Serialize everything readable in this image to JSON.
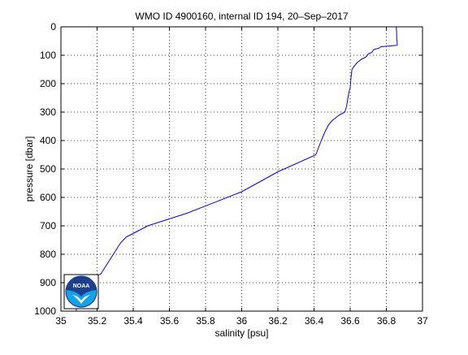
{
  "chart_data": {
    "type": "line",
    "title": "WMO ID 4900160, internal ID 194, 20–Sep–2017",
    "xlabel": "salinity [psu]",
    "ylabel": "pressure [dbar]",
    "xlim": [
      35,
      37
    ],
    "ylim": [
      0,
      1000
    ],
    "y_reversed": true,
    "grid": true,
    "xticks": [
      35,
      35.2,
      35.4,
      35.6,
      35.8,
      36,
      36.2,
      36.4,
      36.6,
      36.8,
      37
    ],
    "xtick_labels": [
      "35",
      "35.2",
      "35.4",
      "35.6",
      "35.8",
      "36",
      "36.2",
      "36.4",
      "36.6",
      "36.8",
      "37"
    ],
    "yticks": [
      0,
      100,
      200,
      300,
      400,
      500,
      600,
      700,
      800,
      900,
      1000
    ],
    "ytick_labels": [
      "0",
      "100",
      "200",
      "300",
      "400",
      "500",
      "600",
      "700",
      "800",
      "900",
      "1000"
    ],
    "series": [
      {
        "color": "#0000ff",
        "x": [
          35.085,
          35.085,
          35.083,
          35.083,
          35.084,
          35.084,
          35.085,
          35.087,
          35.088,
          35.097,
          35.108,
          35.112,
          35.122,
          35.14,
          35.18,
          35.22,
          35.29,
          35.33,
          35.36,
          35.42,
          35.48,
          35.7,
          36.0,
          36.2,
          36.41,
          36.44,
          36.46,
          36.48,
          36.5,
          36.54,
          36.57,
          36.58,
          36.59,
          36.595,
          36.6,
          36.605,
          36.61,
          36.62,
          36.64,
          36.66,
          36.69,
          36.7,
          36.72,
          36.73,
          36.76,
          36.77,
          36.86,
          36.86,
          36.857,
          36.857,
          36.855
        ],
        "y": [
          1000,
          990,
          980,
          970,
          960,
          950,
          940,
          930,
          920,
          908,
          895,
          885,
          878,
          878,
          878,
          870,
          800,
          760,
          740,
          720,
          700,
          655,
          580,
          510,
          450,
          400,
          370,
          345,
          330,
          310,
          300,
          280,
          240,
          225,
          215,
          175,
          150,
          140,
          125,
          115,
          105,
          95,
          90,
          80,
          75,
          70,
          65,
          55,
          40,
          20,
          0
        ]
      }
    ]
  },
  "logo": {
    "text": "NOAA",
    "colors": {
      "sky": "#1c3f8f",
      "water": "#12a3e8",
      "bird": "#ffffff"
    }
  }
}
